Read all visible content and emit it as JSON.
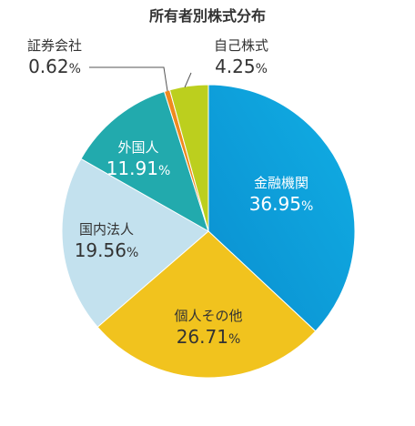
{
  "chart_data": {
    "type": "pie",
    "title": "所有者別株式分布",
    "start_angle_deg": 0,
    "direction": "clockwise",
    "slices": [
      {
        "label": "金融機関",
        "value": 36.95,
        "display": "36.95",
        "color": "#0a8fd0",
        "color2": "#11aee4",
        "text_color": "#ffffff"
      },
      {
        "label": "個人その他",
        "value": 26.71,
        "display": "26.71",
        "color": "#f1c31e",
        "color2": "#f1c31e",
        "text_color": "#333333"
      },
      {
        "label": "国内法人",
        "value": 19.56,
        "display": "19.56",
        "color": "#c3e1ee",
        "color2": "#c3e1ee",
        "text_color": "#333333"
      },
      {
        "label": "外国人",
        "value": 11.91,
        "display": "11.91",
        "color": "#22aaad",
        "color2": "#22aaad",
        "text_color": "#ffffff"
      },
      {
        "label": "証券会社",
        "value": 0.62,
        "display": "0.62",
        "color": "#f08a1e",
        "color2": "#f08a1e",
        "text_color": "#333333"
      },
      {
        "label": "自己株式",
        "value": 4.25,
        "display": "4.25",
        "color": "#bccf1e",
        "color2": "#bccf1e",
        "text_color": "#333333"
      }
    ],
    "unit": "%",
    "legend": "none"
  }
}
